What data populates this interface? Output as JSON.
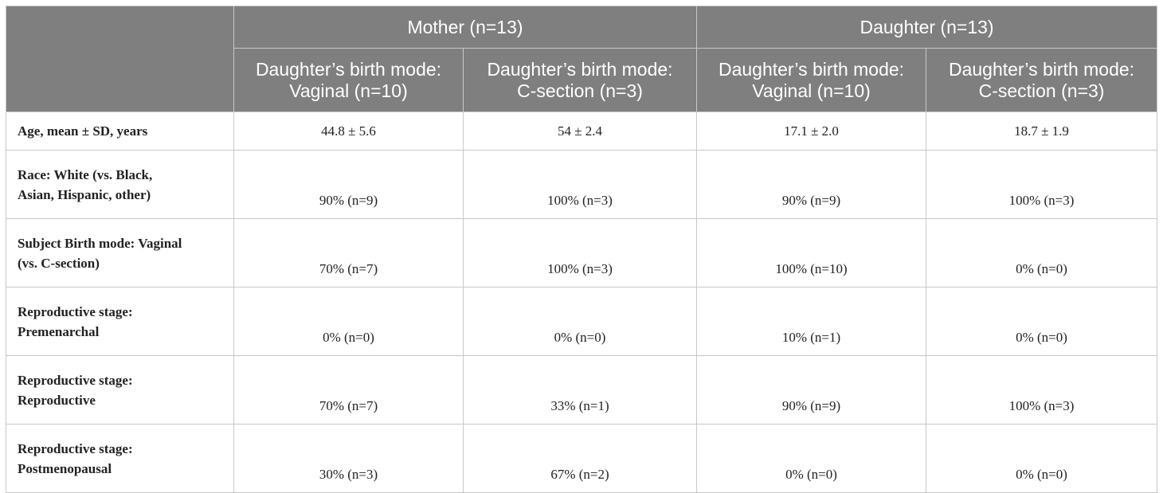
{
  "table": {
    "group_headers": [
      "",
      "Mother (n=13)",
      "Daughter (n=13)"
    ],
    "sub_headers": [
      [
        "Daughter’s birth mode:",
        "Vaginal (n=10)"
      ],
      [
        "Daughter’s birth mode:",
        "C-section (n=3)"
      ],
      [
        "Daughter’s birth mode:",
        "Vaginal (n=10)"
      ],
      [
        "Daughter’s birth mode:",
        "C-section (n=3)"
      ]
    ],
    "rows": [
      {
        "label": [
          "Age, mean ± SD, years"
        ],
        "values": [
          "44.8 ± 5.6",
          "54 ± 2.4",
          "17.1 ± 2.0",
          "18.7 ± 1.9"
        ]
      },
      {
        "label": [
          "Race: White (vs. Black,",
          "Asian, Hispanic, other)"
        ],
        "values": [
          "90% (n=9)",
          "100% (n=3)",
          "90% (n=9)",
          "100% (n=3)"
        ]
      },
      {
        "label": [
          "Subject Birth mode: Vaginal",
          "(vs. C-section)"
        ],
        "values": [
          "70% (n=7)",
          "100% (n=3)",
          "100% (n=10)",
          "0% (n=0)"
        ]
      },
      {
        "label": [
          "Reproductive stage:",
          "Premenarchal"
        ],
        "values": [
          "0% (n=0)",
          "0% (n=0)",
          "10% (n=1)",
          "0% (n=0)"
        ]
      },
      {
        "label": [
          "Reproductive stage:",
          "Reproductive"
        ],
        "values": [
          "70% (n=7)",
          "33% (n=1)",
          "90% (n=9)",
          "100% (n=3)"
        ]
      },
      {
        "label": [
          "Reproductive stage:",
          "Postmenopausal"
        ],
        "values": [
          "30% (n=3)",
          "67% (n=2)",
          "0% (n=0)",
          "0% (n=0)"
        ]
      }
    ]
  }
}
